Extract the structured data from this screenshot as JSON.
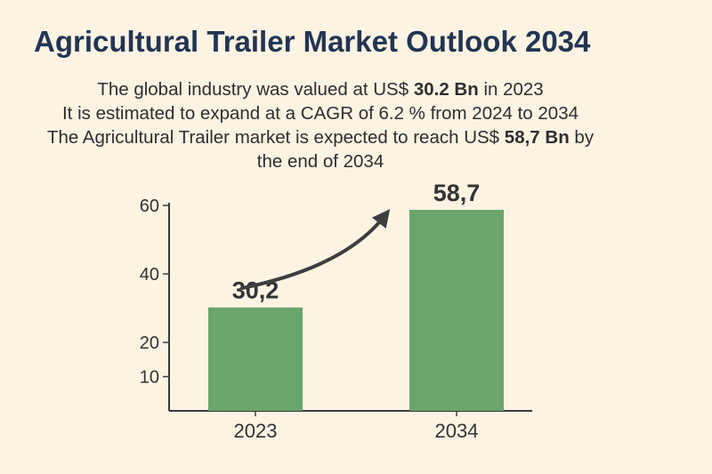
{
  "title": "Agricultural Trailer Market Outlook 2034",
  "summary": {
    "line1_prefix": "The global industry was valued at US$ ",
    "line1_value": "30.2 Bn",
    "line1_suffix": " in 2023",
    "line2": "It is estimated to expand at a CAGR of 6.2 % from 2024 to 2034",
    "line3_prefix": "The Agricultural Trailer market is expected to reach US$ ",
    "line3_value": "58,7 Bn",
    "line3_suffix": " by",
    "line4": "the end of 2034"
  },
  "chart_data": {
    "type": "bar",
    "categories": [
      "2023",
      "2034"
    ],
    "values": [
      30.2,
      58.7
    ],
    "data_labels": [
      "30,2",
      "58,7"
    ],
    "yticks": [
      10,
      20,
      40,
      60
    ],
    "ylim": [
      0,
      60
    ],
    "xlabel": "",
    "ylabel": "",
    "grid": false,
    "bar_color": "#6aa56b",
    "growth_arrow": true
  },
  "colors": {
    "background": "#fdf3e3",
    "title": "#223552",
    "bar": "#6aa56b",
    "axis": "#3a3a3a",
    "arrow": "#3e3e3e"
  }
}
